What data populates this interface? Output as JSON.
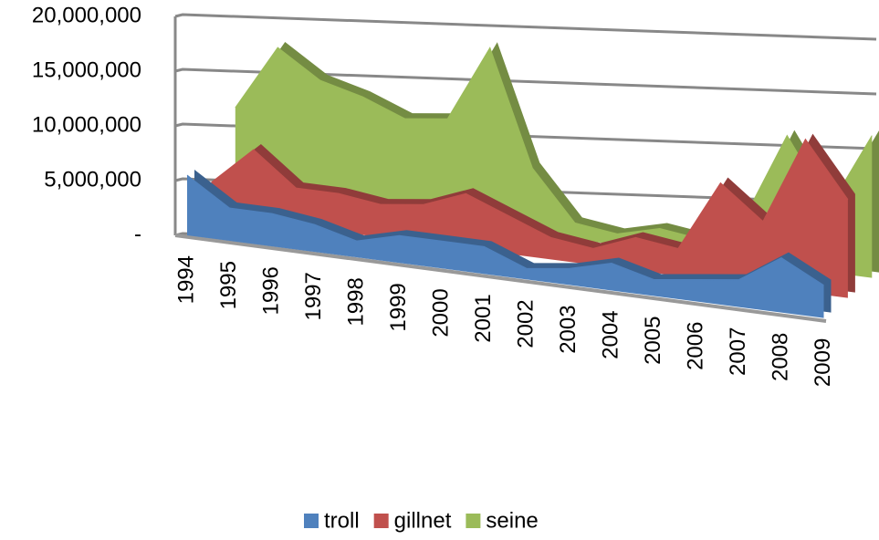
{
  "chart_data": {
    "type": "area3d",
    "categories": [
      "1994",
      "1995",
      "1996",
      "1997",
      "1998",
      "1999",
      "2000",
      "2001",
      "2002",
      "2003",
      "2004",
      "2005",
      "2006",
      "2007",
      "2008",
      "2009"
    ],
    "series": [
      {
        "name": "troll",
        "color": "#4f81bd",
        "values": [
          5500000,
          3000000,
          3000000,
          2500000,
          1500000,
          2500000,
          2500000,
          2500000,
          1000000,
          1500000,
          2500000,
          1500000,
          2000000,
          2500000,
          5000000,
          3000000
        ]
      },
      {
        "name": "gillnet",
        "color": "#c0504d",
        "values": [
          3000000,
          6500000,
          3500000,
          3500000,
          3000000,
          3500000,
          5000000,
          3500000,
          2000000,
          1500000,
          3000000,
          2500000,
          9000000,
          6000000,
          14000000,
          9000000
        ]
      },
      {
        "name": "seine",
        "color": "#9bbb59",
        "values": [
          8000000,
          14000000,
          11500000,
          10500000,
          9000000,
          9500000,
          16500000,
          6000000,
          1500000,
          1000000,
          2000000,
          1500000,
          4000000,
          12000000,
          6000000,
          13000000
        ]
      }
    ],
    "ylim": [
      0,
      20000000
    ],
    "yticks": [
      {
        "value": 0,
        "label": "-"
      },
      {
        "value": 5000000,
        "label": "5,000,000"
      },
      {
        "value": 10000000,
        "label": "10,000,000"
      },
      {
        "value": 15000000,
        "label": "15,000,000"
      },
      {
        "value": 20000000,
        "label": "20,000,000"
      }
    ],
    "grid": true,
    "legend": "bottom"
  }
}
